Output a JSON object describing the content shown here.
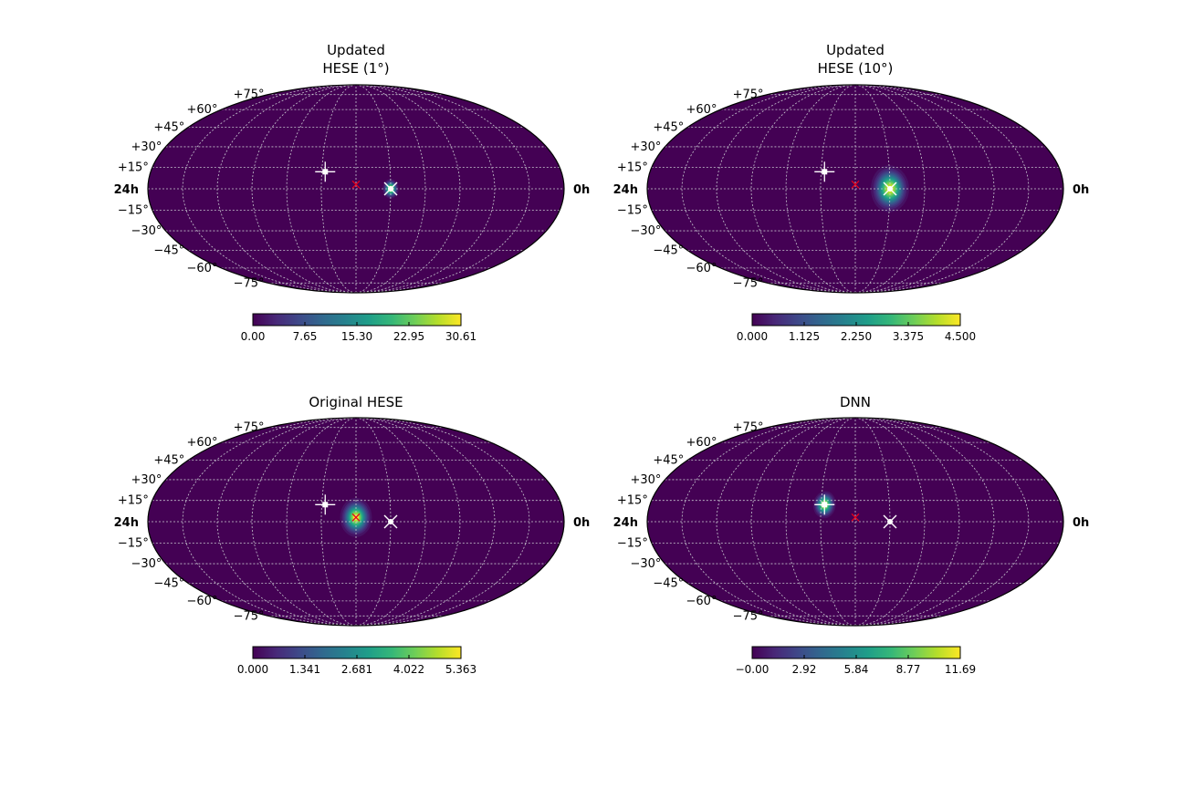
{
  "colors": {
    "background": "#ffffff",
    "map_fill": "#440154",
    "grid": "#c8c8d0",
    "outline": "#000000",
    "marker_white": "#ffffff",
    "marker_red": "#e8001a",
    "viridis": [
      "#440154",
      "#482878",
      "#3e4989",
      "#31688e",
      "#26828e",
      "#1f9e89",
      "#35b779",
      "#6ece58",
      "#b5de2b",
      "#fde725"
    ]
  },
  "chart_data": [
    {
      "type": "heatmap",
      "projection": "mollweide",
      "title_lines": [
        "Updated",
        "HESE (1°)"
      ],
      "lat_tick_labels": [
        "+75°",
        "+60°",
        "+45°",
        "+30°",
        "+15°",
        "−15°",
        "−30°",
        "−45°",
        "−60°",
        "−75°"
      ],
      "hour_labels": {
        "left": "24h",
        "right": "0h"
      },
      "colorbar": {
        "min": 0.0,
        "max": 30.61,
        "ticks": [
          "0.00",
          "7.65",
          "15.30",
          "22.95",
          "30.61"
        ]
      },
      "hotspot": {
        "ra_h": 10.0,
        "dec_deg": 0,
        "sigma_deg": 2.5,
        "peak": 30.61
      },
      "markers": [
        {
          "symbol": "cross-square",
          "color": "white",
          "ra_h": 13.8,
          "dec_deg": 12
        },
        {
          "symbol": "x",
          "color": "red",
          "ra_h": 12.0,
          "dec_deg": 3
        },
        {
          "symbol": "x-dot",
          "color": "white",
          "ra_h": 10.0,
          "dec_deg": 0
        }
      ]
    },
    {
      "type": "heatmap",
      "projection": "mollweide",
      "title_lines": [
        "Updated",
        "HESE (10°)"
      ],
      "lat_tick_labels": [
        "+75°",
        "+60°",
        "+45°",
        "+30°",
        "+15°",
        "−15°",
        "−30°",
        "−45°",
        "−60°",
        "−75°"
      ],
      "hour_labels": {
        "left": "24h",
        "right": "0h"
      },
      "colorbar": {
        "min": 0.0,
        "max": 4.5,
        "ticks": [
          "0.000",
          "1.125",
          "2.250",
          "3.375",
          "4.500"
        ]
      },
      "hotspot": {
        "ra_h": 10.0,
        "dec_deg": 0,
        "sigma_deg": 6,
        "peak": 4.5
      },
      "markers": [
        {
          "symbol": "cross-square",
          "color": "white",
          "ra_h": 13.8,
          "dec_deg": 12
        },
        {
          "symbol": "x",
          "color": "red",
          "ra_h": 12.0,
          "dec_deg": 3
        },
        {
          "symbol": "x-dot",
          "color": "white",
          "ra_h": 10.0,
          "dec_deg": 0
        }
      ]
    },
    {
      "type": "heatmap",
      "projection": "mollweide",
      "title_lines": [
        "Original HESE"
      ],
      "lat_tick_labels": [
        "+75°",
        "+60°",
        "+45°",
        "+30°",
        "+15°",
        "−15°",
        "−30°",
        "−45°",
        "−60°",
        "−75°"
      ],
      "hour_labels": {
        "left": "24h",
        "right": "0h"
      },
      "colorbar": {
        "min": 0.0,
        "max": 5.363,
        "ticks": [
          "0.000",
          "1.341",
          "2.681",
          "4.022",
          "5.363"
        ]
      },
      "hotspot": {
        "ra_h": 12.0,
        "dec_deg": 3,
        "sigma_deg": 5,
        "peak": 5.363
      },
      "markers": [
        {
          "symbol": "cross-square",
          "color": "white",
          "ra_h": 13.8,
          "dec_deg": 12
        },
        {
          "symbol": "x",
          "color": "red",
          "ra_h": 12.0,
          "dec_deg": 3
        },
        {
          "symbol": "x-dot",
          "color": "white",
          "ra_h": 10.0,
          "dec_deg": 0
        }
      ]
    },
    {
      "type": "heatmap",
      "projection": "mollweide",
      "title_lines": [
        "DNN"
      ],
      "lat_tick_labels": [
        "+75°",
        "+60°",
        "+45°",
        "+30°",
        "+15°",
        "−15°",
        "−30°",
        "−45°",
        "−60°",
        "−75°"
      ],
      "hour_labels": {
        "left": "24h",
        "right": "0h"
      },
      "colorbar": {
        "min": 0.0,
        "max": 11.69,
        "ticks": [
          "−0.00",
          "2.92",
          "5.84",
          "8.77",
          "11.69"
        ]
      },
      "hotspot": {
        "ra_h": 13.8,
        "dec_deg": 12,
        "sigma_deg": 3.5,
        "peak": 11.69
      },
      "markers": [
        {
          "symbol": "cross-square",
          "color": "white",
          "ra_h": 13.8,
          "dec_deg": 12
        },
        {
          "symbol": "x",
          "color": "red",
          "ra_h": 12.0,
          "dec_deg": 3
        },
        {
          "symbol": "x-dot",
          "color": "white",
          "ra_h": 10.0,
          "dec_deg": 0
        }
      ]
    }
  ]
}
